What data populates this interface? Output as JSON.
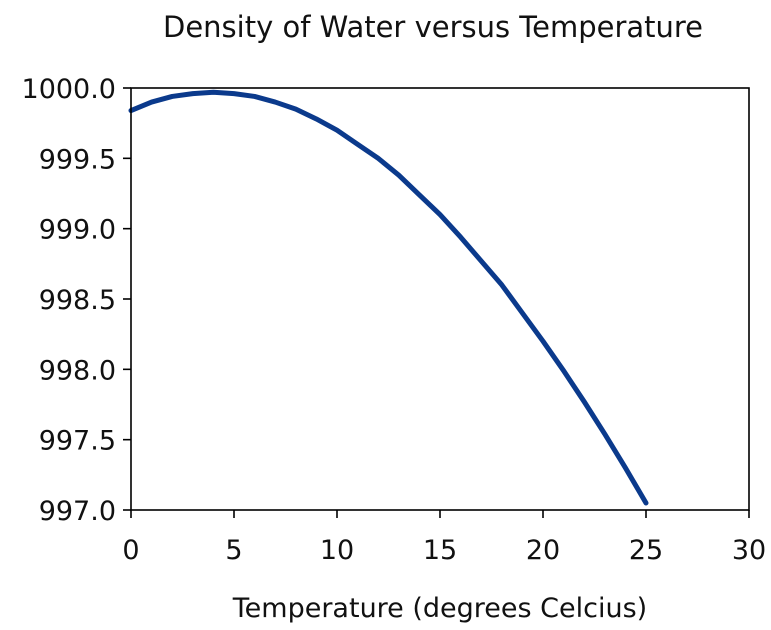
{
  "chart_data": {
    "type": "line",
    "title": "Density of Water versus Temperature",
    "xlabel": "Temperature (degrees Celcius)",
    "ylabel": "",
    "xlim": [
      0,
      30
    ],
    "ylim": [
      997.0,
      1000.0
    ],
    "x_ticks": [
      "0",
      "5",
      "10",
      "15",
      "20",
      "25",
      "30"
    ],
    "y_ticks": [
      "997.0",
      "997.5",
      "998.0",
      "998.5",
      "999.0",
      "999.5",
      "1000.0"
    ],
    "grid": false,
    "series": [
      {
        "name": "Density of water",
        "color": "#0b3a8c",
        "x": [
          0,
          1,
          2,
          3,
          4,
          5,
          6,
          7,
          8,
          9,
          10,
          11,
          12,
          13,
          14,
          15,
          16,
          17,
          18,
          19,
          20,
          21,
          22,
          23,
          24,
          25
        ],
        "y": [
          999.84,
          999.9,
          999.94,
          999.96,
          999.97,
          999.96,
          999.94,
          999.9,
          999.85,
          999.78,
          999.7,
          999.6,
          999.5,
          999.38,
          999.24,
          999.1,
          998.94,
          998.77,
          998.6,
          998.4,
          998.2,
          997.99,
          997.77,
          997.54,
          997.3,
          997.05
        ]
      }
    ]
  }
}
